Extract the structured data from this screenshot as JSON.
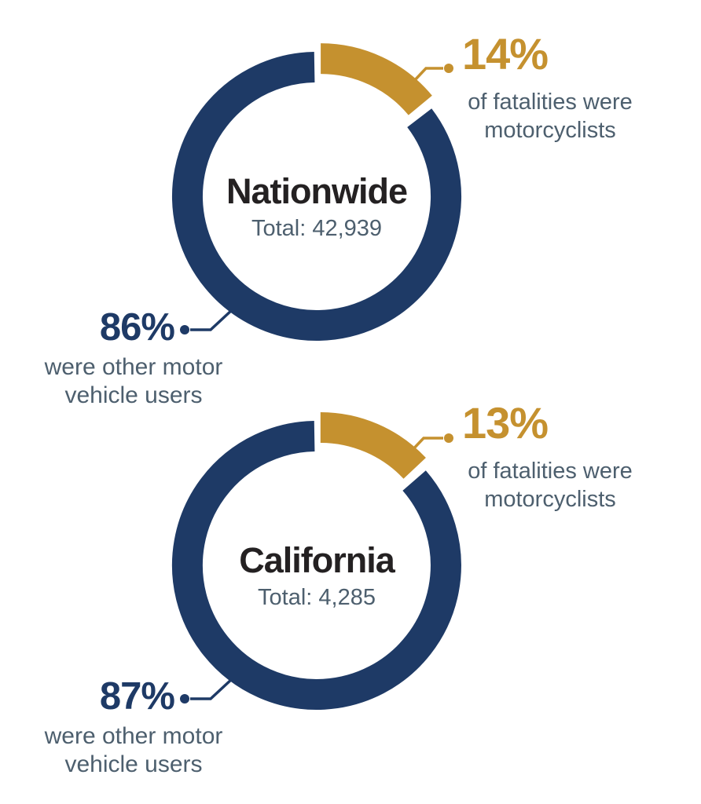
{
  "colors": {
    "motorcyclist_gold": "#c5912f",
    "other_users_navy": "#1e3a66",
    "description_slate": "#4d5f6e",
    "title_dark": "#242122",
    "background": "#ffffff"
  },
  "chart_data": [
    {
      "type": "pie",
      "variant": "donut",
      "title": "Nationwide",
      "total_label": "Total: 42,939",
      "total_value": 42939,
      "legend_position": "callouts",
      "start_angle_deg": -90,
      "slices": [
        {
          "label": "motorcyclists",
          "pct": 14,
          "color": "#c5912f",
          "exploded": true,
          "callout_value": "14%",
          "callout_lines": [
            "of fatalities were",
            "motorcyclists"
          ]
        },
        {
          "label": "other motor vehicle users",
          "pct": 86,
          "color": "#1e3a66",
          "exploded": false,
          "callout_value": "86%",
          "callout_lines": [
            "were other motor",
            "vehicle users"
          ]
        }
      ]
    },
    {
      "type": "pie",
      "variant": "donut",
      "title": "California",
      "total_label": "Total: 4,285",
      "total_value": 4285,
      "legend_position": "callouts",
      "start_angle_deg": -90,
      "slices": [
        {
          "label": "motorcyclists",
          "pct": 13,
          "color": "#c5912f",
          "exploded": true,
          "callout_value": "13%",
          "callout_lines": [
            "of fatalities were",
            "motorcyclists"
          ]
        },
        {
          "label": "other motor vehicle users",
          "pct": 87,
          "color": "#1e3a66",
          "exploded": false,
          "callout_value": "87%",
          "callout_lines": [
            "were other motor",
            "vehicle users"
          ]
        }
      ]
    }
  ]
}
